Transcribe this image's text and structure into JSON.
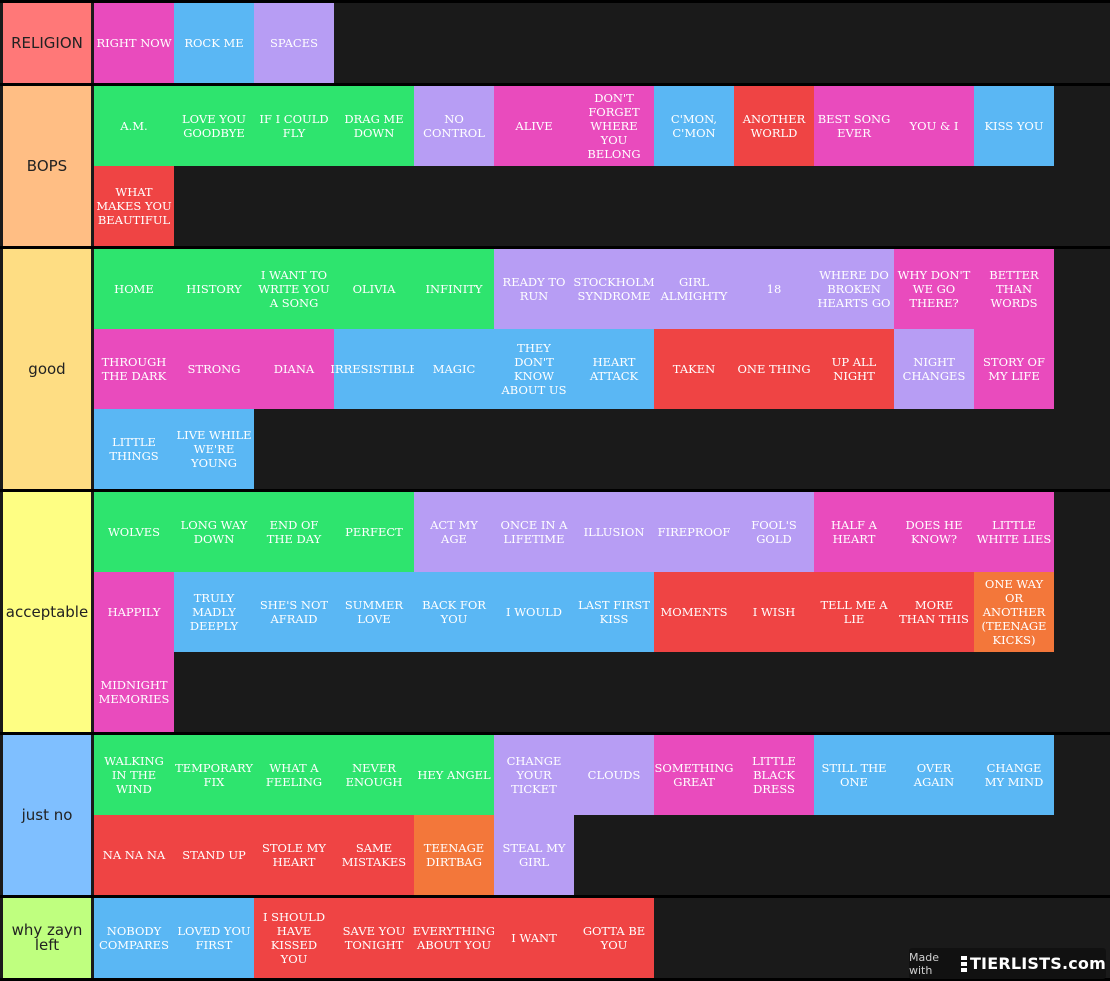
{
  "colors": {
    "pink": "#e94bbd",
    "blue": "#5ab7f4",
    "purple": "#b79df4",
    "green": "#2ee46e",
    "red": "#ef4444",
    "orange": "#f3773a",
    "background": "#1a1a1a"
  },
  "tiers": [
    {
      "label": "RELIGION",
      "color": "#ff7878",
      "items": [
        {
          "title": "RIGHT NOW",
          "color": "pink"
        },
        {
          "title": "ROCK ME",
          "color": "blue"
        },
        {
          "title": "SPACES",
          "color": "purple"
        }
      ]
    },
    {
      "label": "BOPS",
      "color": "#ffbe84",
      "items": [
        {
          "title": "A.M.",
          "color": "green"
        },
        {
          "title": "LOVE YOU GOODBYE",
          "color": "green"
        },
        {
          "title": "IF I COULD FLY",
          "color": "green"
        },
        {
          "title": "DRAG ME DOWN",
          "color": "green"
        },
        {
          "title": "NO CONTROL",
          "color": "purple"
        },
        {
          "title": "ALIVE",
          "color": "pink"
        },
        {
          "title": "DON'T FORGET WHERE YOU BELONG",
          "color": "pink"
        },
        {
          "title": "C'MON, C'MON",
          "color": "blue"
        },
        {
          "title": "ANOTHER WORLD",
          "color": "red"
        },
        {
          "title": "BEST SONG EVER",
          "color": "pink"
        },
        {
          "title": "YOU & I",
          "color": "pink"
        },
        {
          "title": "KISS YOU",
          "color": "blue"
        },
        {
          "title": "WHAT MAKES YOU BEAUTIFUL",
          "color": "red"
        }
      ]
    },
    {
      "label": "good",
      "color": "#fedd83",
      "items": [
        {
          "title": "HOME",
          "color": "green"
        },
        {
          "title": "HISTORY",
          "color": "green"
        },
        {
          "title": "I WANT TO WRITE YOU A SONG",
          "color": "green"
        },
        {
          "title": "OLIVIA",
          "color": "green"
        },
        {
          "title": "INFINITY",
          "color": "green"
        },
        {
          "title": "READY TO RUN",
          "color": "purple"
        },
        {
          "title": "STOCKHOLM SYNDROME",
          "color": "purple"
        },
        {
          "title": "GIRL ALMIGHTY",
          "color": "purple"
        },
        {
          "title": "18",
          "color": "purple"
        },
        {
          "title": "WHERE DO BROKEN HEARTS GO",
          "color": "purple"
        },
        {
          "title": "WHY DON'T WE GO THERE?",
          "color": "pink"
        },
        {
          "title": "BETTER THAN WORDS",
          "color": "pink"
        },
        {
          "title": "THROUGH THE DARK",
          "color": "pink"
        },
        {
          "title": "STRONG",
          "color": "pink"
        },
        {
          "title": "DIANA",
          "color": "pink"
        },
        {
          "title": "IRRESISTIBLE",
          "color": "blue"
        },
        {
          "title": "MAGIC",
          "color": "blue"
        },
        {
          "title": "THEY DON'T KNOW ABOUT US",
          "color": "blue"
        },
        {
          "title": "HEART ATTACK",
          "color": "blue"
        },
        {
          "title": "TAKEN",
          "color": "red"
        },
        {
          "title": "ONE THING",
          "color": "red"
        },
        {
          "title": "UP ALL NIGHT",
          "color": "red"
        },
        {
          "title": "NIGHT CHANGES",
          "color": "purple"
        },
        {
          "title": "STORY OF MY LIFE",
          "color": "pink"
        },
        {
          "title": "LITTLE THINGS",
          "color": "blue"
        },
        {
          "title": "LIVE WHILE WE'RE YOUNG",
          "color": "blue"
        }
      ]
    },
    {
      "label": "acceptable",
      "color": "#fefe83",
      "items": [
        {
          "title": "WOLVES",
          "color": "green"
        },
        {
          "title": "LONG WAY DOWN",
          "color": "green"
        },
        {
          "title": "END OF THE DAY",
          "color": "green"
        },
        {
          "title": "PERFECT",
          "color": "green"
        },
        {
          "title": "ACT MY AGE",
          "color": "purple"
        },
        {
          "title": "ONCE IN A LIFETIME",
          "color": "purple"
        },
        {
          "title": "ILLUSION",
          "color": "purple"
        },
        {
          "title": "FIREPROOF",
          "color": "purple"
        },
        {
          "title": "FOOL'S GOLD",
          "color": "purple"
        },
        {
          "title": "HALF A HEART",
          "color": "pink"
        },
        {
          "title": "DOES HE KNOW?",
          "color": "pink"
        },
        {
          "title": "LITTLE WHITE LIES",
          "color": "pink"
        },
        {
          "title": "HAPPILY",
          "color": "pink"
        },
        {
          "title": "TRULY MADLY DEEPLY",
          "color": "blue"
        },
        {
          "title": "SHE'S NOT AFRAID",
          "color": "blue"
        },
        {
          "title": "SUMMER LOVE",
          "color": "blue"
        },
        {
          "title": "BACK FOR YOU",
          "color": "blue"
        },
        {
          "title": "I WOULD",
          "color": "blue"
        },
        {
          "title": "LAST FIRST KISS",
          "color": "blue"
        },
        {
          "title": "MOMENTS",
          "color": "red"
        },
        {
          "title": "I WISH",
          "color": "red"
        },
        {
          "title": "TELL ME A LIE",
          "color": "red"
        },
        {
          "title": "MORE THAN THIS",
          "color": "red"
        },
        {
          "title": "ONE WAY OR ANOTHER (TEENAGE KICKS)",
          "color": "orange"
        },
        {
          "title": "MIDNIGHT MEMORIES",
          "color": "pink"
        }
      ]
    },
    {
      "label": "just no",
      "color": "#7fbfff",
      "items": [
        {
          "title": "WALKING IN THE WIND",
          "color": "green"
        },
        {
          "title": "TEMPORARY FIX",
          "color": "green"
        },
        {
          "title": "WHAT A FEELING",
          "color": "green"
        },
        {
          "title": "NEVER ENOUGH",
          "color": "green"
        },
        {
          "title": "HEY ANGEL",
          "color": "green"
        },
        {
          "title": "CHANGE YOUR TICKET",
          "color": "purple"
        },
        {
          "title": "CLOUDS",
          "color": "purple"
        },
        {
          "title": "SOMETHING GREAT",
          "color": "pink"
        },
        {
          "title": "LITTLE BLACK DRESS",
          "color": "pink"
        },
        {
          "title": "STILL THE ONE",
          "color": "blue"
        },
        {
          "title": "OVER AGAIN",
          "color": "blue"
        },
        {
          "title": "CHANGE MY MIND",
          "color": "blue"
        },
        {
          "title": "NA NA NA",
          "color": "red"
        },
        {
          "title": "STAND UP",
          "color": "red"
        },
        {
          "title": "STOLE MY HEART",
          "color": "red"
        },
        {
          "title": "SAME MISTAKES",
          "color": "red"
        },
        {
          "title": "TEENAGE DIRTBAG",
          "color": "orange"
        },
        {
          "title": "STEAL MY GIRL",
          "color": "purple"
        }
      ]
    },
    {
      "label": "why zayn left",
      "color": "#bfff7f",
      "items": [
        {
          "title": "NOBODY COMPARES",
          "color": "blue"
        },
        {
          "title": "LOVED YOU FIRST",
          "color": "blue"
        },
        {
          "title": "I SHOULD HAVE KISSED YOU",
          "color": "red"
        },
        {
          "title": "SAVE YOU TONIGHT",
          "color": "red"
        },
        {
          "title": "EVERYTHING ABOUT YOU",
          "color": "red"
        },
        {
          "title": "I WANT",
          "color": "red"
        },
        {
          "title": "GOTTA BE YOU",
          "color": "red"
        }
      ]
    }
  ],
  "watermark": {
    "made_with": "Made with",
    "brand": "TIERLISTS.com"
  }
}
